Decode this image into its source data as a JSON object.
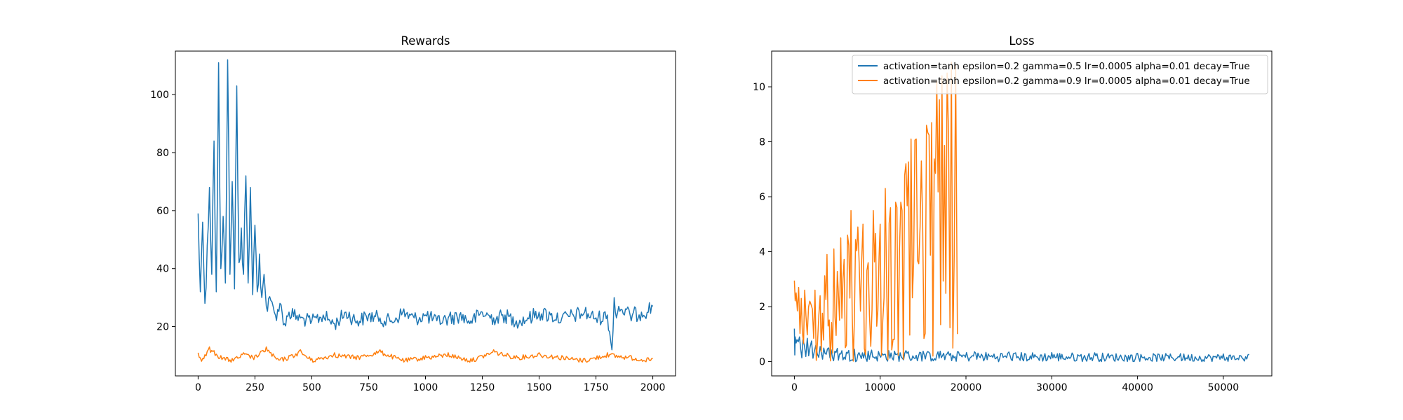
{
  "chart_data": [
    {
      "type": "line",
      "title": "Rewards",
      "xlabel": "",
      "ylabel": "",
      "xlim": [
        -100,
        2100
      ],
      "ylim": [
        3,
        115
      ],
      "xticks": [
        0,
        250,
        500,
        750,
        1000,
        1250,
        1500,
        1750,
        2000
      ],
      "xtick_labels": [
        "0",
        "250",
        "500",
        "750",
        "1000",
        "1250",
        "1500",
        "1750",
        "2000"
      ],
      "yticks": [
        20,
        40,
        60,
        80,
        100
      ],
      "ytick_labels": [
        "20",
        "40",
        "60",
        "80",
        "100"
      ],
      "grid": false,
      "legend": "none",
      "series": [
        {
          "color": "#1f77b4",
          "x": [
            0,
            10,
            20,
            30,
            40,
            50,
            60,
            70,
            80,
            90,
            100,
            110,
            120,
            130,
            140,
            150,
            160,
            170,
            180,
            190,
            200,
            210,
            220,
            230,
            240,
            250,
            260,
            270,
            280,
            290,
            300,
            320,
            340,
            360,
            380,
            400,
            450,
            500,
            550,
            600,
            650,
            700,
            750,
            800,
            850,
            900,
            950,
            1000,
            1050,
            1100,
            1150,
            1200,
            1250,
            1300,
            1350,
            1400,
            1450,
            1500,
            1550,
            1600,
            1650,
            1700,
            1750,
            1800,
            1820,
            1830,
            1840,
            1850,
            1900,
            1950,
            2000
          ],
          "y": [
            59,
            32,
            56,
            28,
            48,
            68,
            38,
            84,
            32,
            111,
            40,
            58,
            35,
            112,
            38,
            70,
            33,
            103,
            42,
            54,
            38,
            72,
            35,
            68,
            31,
            55,
            32,
            45,
            30,
            38,
            27,
            29,
            24,
            28,
            21,
            25,
            23,
            22,
            24,
            21,
            25,
            22,
            24,
            23,
            22,
            25,
            23,
            24,
            22,
            23,
            24,
            22,
            25,
            23,
            24,
            22,
            23,
            25,
            24,
            23,
            24,
            25,
            23,
            24,
            12,
            30,
            23,
            27,
            24,
            25,
            27
          ]
        },
        {
          "color": "#ff7f0e",
          "x": [
            0,
            20,
            50,
            100,
            150,
            200,
            250,
            300,
            350,
            400,
            450,
            500,
            600,
            700,
            800,
            900,
            1000,
            1100,
            1200,
            1300,
            1400,
            1500,
            1600,
            1700,
            1800,
            1900,
            2000
          ],
          "y": [
            11,
            9,
            13,
            10,
            9,
            11,
            10,
            13,
            9,
            10,
            12,
            9,
            11,
            10,
            12,
            9,
            10,
            11,
            9,
            12,
            10,
            11,
            10,
            9,
            11,
            10,
            9
          ]
        }
      ]
    },
    {
      "type": "line",
      "title": "Loss",
      "xlabel": "",
      "ylabel": "",
      "xlim": [
        -2650,
        55650
      ],
      "ylim": [
        -0.52,
        11.3
      ],
      "xticks": [
        0,
        10000,
        20000,
        30000,
        40000,
        50000
      ],
      "xtick_labels": [
        "0",
        "10000",
        "20000",
        "30000",
        "40000",
        "50000"
      ],
      "yticks": [
        0,
        2,
        4,
        6,
        8,
        10
      ],
      "ytick_labels": [
        "0",
        "2",
        "4",
        "6",
        "8",
        "10"
      ],
      "grid": false,
      "legend": "top-right",
      "series": [
        {
          "name": "activation=tanh epsilon=0.2 gamma=0.5 lr=0.0005 alpha=0.01 decay=True",
          "color": "#1f77b4",
          "x": [
            0,
            100,
            300,
            600,
            1000,
            1500,
            2000,
            2500,
            3000,
            4000,
            5000,
            7000,
            9000,
            11000,
            13000,
            15000,
            17000,
            19000,
            21000,
            25000,
            30000,
            35000,
            40000,
            45000,
            50000,
            53000
          ],
          "y": [
            1.2,
            0.9,
            0.8,
            0.9,
            0.8,
            0.85,
            0.75,
            0.6,
            0.55,
            0.5,
            0.48,
            0.45,
            0.42,
            0.4,
            0.4,
            0.38,
            0.38,
            0.36,
            0.36,
            0.35,
            0.33,
            0.32,
            0.3,
            0.29,
            0.28,
            0.27
          ]
        },
        {
          "name": "activation=tanh epsilon=0.2 gamma=0.9 lr=0.0005 alpha=0.01 decay=True",
          "color": "#ff7f0e",
          "x": [
            0,
            200,
            500,
            800,
            1200,
            1800,
            2400,
            3000,
            3800,
            4600,
            5400,
            6200,
            6600,
            7400,
            8000,
            8600,
            9200,
            10000,
            10600,
            11200,
            11800,
            12400,
            13000,
            13600,
            14200,
            14800,
            15400,
            16000,
            16600,
            17200,
            17800,
            18300,
            18800,
            19000
          ],
          "y": [
            2.95,
            2.5,
            2.7,
            2.3,
            2.6,
            2.2,
            2.6,
            2.4,
            3.9,
            4.1,
            4.5,
            4.6,
            5.5,
            4.9,
            5.0,
            3.6,
            5.5,
            5.0,
            6.3,
            5.6,
            5.8,
            5.8,
            7.2,
            8.1,
            8.1,
            7.3,
            8.6,
            8.7,
            10.2,
            10.4,
            10.5,
            10.9,
            10.8,
            1.0
          ]
        }
      ]
    }
  ]
}
